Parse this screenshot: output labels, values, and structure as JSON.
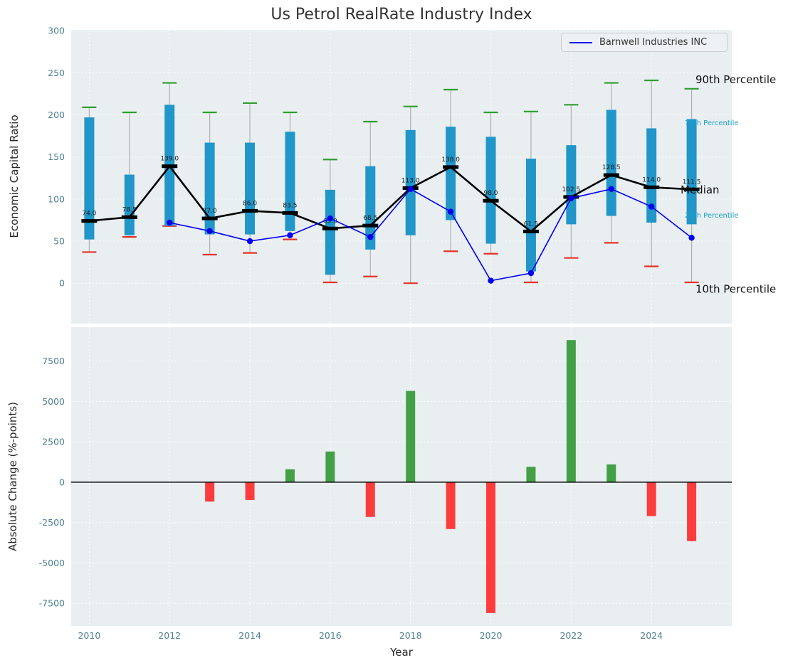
{
  "title": "Us Petrol RealRate Industry Index",
  "legend": {
    "series_label": "Barnwell Industries INC"
  },
  "colors": {
    "plot_bg": "#e9eef1",
    "grid": "#ffffff",
    "tick": "#4d7f8f",
    "box": "#2196c8",
    "median": "#000000",
    "series": "#0000ee",
    "cap_high": "#2e9e2e",
    "cap_low": "#e5322a",
    "whisker": "#b0b0b0",
    "teal": "#17a2c9",
    "bar_positive": "#43a047",
    "bar_negative": "#fd3d3d"
  },
  "chart_data": [
    {
      "type": "boxplot+line",
      "title": "Us Petrol RealRate Industry Index",
      "ylabel": "Economic Capital Ratio",
      "yticks": [
        0,
        50,
        100,
        150,
        200,
        250,
        300
      ],
      "ylim": [
        -48,
        301
      ],
      "xlim": [
        2009.55,
        2026.0
      ],
      "grid": true,
      "years": [
        2010,
        2011,
        2012,
        2013,
        2014,
        2015,
        2016,
        2017,
        2018,
        2019,
        2020,
        2021,
        2022,
        2023,
        2024,
        2025
      ],
      "median": [
        74.0,
        78.5,
        139.0,
        77.0,
        86.0,
        83.5,
        65.0,
        68.5,
        113.0,
        138.0,
        98.0,
        61.5,
        102.5,
        128.5,
        114.0,
        111.5
      ],
      "median_labels": [
        "74.0",
        "78.5",
        "139.0",
        "77.0",
        "86.0",
        "83.5",
        "65.0",
        "68.5",
        "113.0",
        "138.0",
        "98.0",
        "61.5",
        "102.5",
        "128.5",
        "114.0",
        "111.5"
      ],
      "q1": [
        52,
        57,
        68,
        58,
        58,
        62,
        10,
        40,
        57,
        75,
        47,
        14,
        70,
        80,
        72,
        70
      ],
      "q3": [
        197,
        129,
        212,
        167,
        167,
        180,
        111,
        139,
        182,
        186,
        174,
        148,
        164,
        206,
        184,
        195
      ],
      "p10": [
        37,
        55,
        68,
        34,
        36,
        52,
        1,
        8,
        0,
        38,
        35,
        1,
        30,
        48,
        20,
        1
      ],
      "p90": [
        209,
        203,
        238,
        203,
        214,
        203,
        147,
        192,
        210,
        230,
        203,
        204,
        212,
        238,
        241,
        231
      ],
      "series": [
        {
          "name": "Barnwell Industries INC",
          "years": [
            2012,
            2013,
            2014,
            2015,
            2016,
            2017,
            2018,
            2019,
            2020,
            2021,
            2022,
            2023,
            2024,
            2025
          ],
          "values": [
            72,
            62,
            50,
            57,
            77,
            55,
            112,
            85,
            3,
            12,
            101,
            112,
            91,
            54
          ]
        }
      ],
      "annotations": [
        {
          "label": "90th Percentile",
          "value": 242,
          "style": "large"
        },
        {
          "label": "75th Percentile",
          "value": 192,
          "style": "small"
        },
        {
          "label": "Median",
          "value": 111,
          "style": "large"
        },
        {
          "label": "25th Percentile",
          "value": 82,
          "style": "small"
        },
        {
          "label": "10th Percentile",
          "value": -7,
          "style": "large"
        }
      ],
      "legend_position": "upper right"
    },
    {
      "type": "bar",
      "ylabel": "Absolute Change (%-points)",
      "xlabel": "Year",
      "yticks": [
        7500,
        5000,
        2500,
        0,
        -2500,
        -5000,
        -7500
      ],
      "ylim": [
        -8900,
        9600
      ],
      "xticks": [
        2010,
        2012,
        2014,
        2016,
        2018,
        2020,
        2022,
        2024
      ],
      "grid": true,
      "years": [
        2013,
        2014,
        2015,
        2016,
        2017,
        2018,
        2019,
        2020,
        2021,
        2022,
        2023,
        2024,
        2025
      ],
      "values": [
        -1200,
        -1100,
        800,
        1900,
        -2150,
        5650,
        -2900,
        -8100,
        950,
        8800,
        1100,
        -2100,
        -3650
      ]
    }
  ]
}
